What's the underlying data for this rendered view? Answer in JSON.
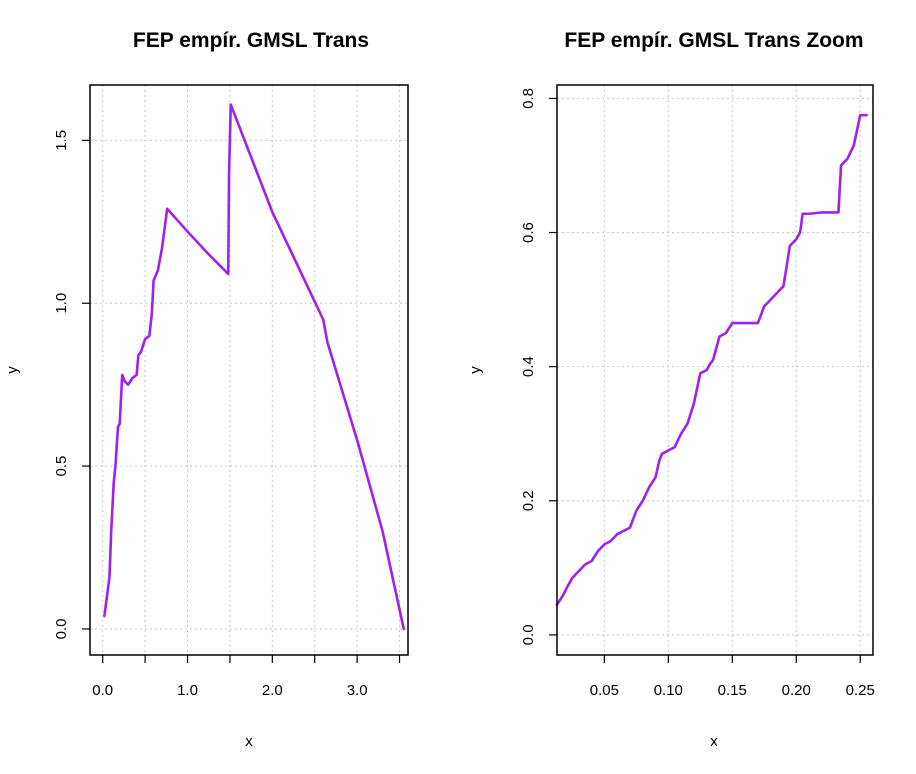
{
  "colors": {
    "series": "#A020F0",
    "grid": "#c8c8c8",
    "frame": "#000000"
  },
  "chart_data": [
    {
      "type": "line",
      "title": "FEP empír. GMSL Trans",
      "xlabel": "x",
      "ylabel": "y",
      "xlim": [
        -0.15,
        3.6
      ],
      "ylim": [
        -0.08,
        1.67
      ],
      "xticks": [
        0.0,
        0.5,
        1.0,
        1.5,
        2.0,
        2.5,
        3.0,
        3.5
      ],
      "xtick_labels": [
        "0.0",
        "",
        "1.0",
        "",
        "2.0",
        "",
        "3.0",
        ""
      ],
      "yticks": [
        0.0,
        0.5,
        1.0,
        1.5
      ],
      "ytick_labels": [
        "0.0",
        "0.5",
        "1.0",
        "1.5"
      ],
      "grid": true,
      "series": [
        {
          "x": [
            0.02,
            0.05,
            0.08,
            0.1,
            0.13,
            0.15,
            0.18,
            0.2,
            0.23,
            0.26,
            0.3,
            0.35,
            0.4,
            0.42,
            0.45,
            0.5,
            0.55,
            0.58,
            0.6,
            0.65,
            0.7,
            0.76,
            1.0,
            1.25,
            1.48,
            1.49,
            1.51,
            2.0,
            2.6,
            2.65,
            3.0,
            3.3,
            3.55
          ],
          "values": [
            0.04,
            0.1,
            0.16,
            0.3,
            0.45,
            0.5,
            0.62,
            0.63,
            0.78,
            0.76,
            0.75,
            0.77,
            0.78,
            0.84,
            0.85,
            0.89,
            0.9,
            0.97,
            1.07,
            1.1,
            1.17,
            1.29,
            1.22,
            1.15,
            1.09,
            1.4,
            1.61,
            1.28,
            0.95,
            0.88,
            0.58,
            0.3,
            0.0
          ]
        }
      ]
    },
    {
      "type": "line",
      "title": "FEP empír. GMSL Trans Zoom",
      "xlabel": "x",
      "ylabel": "y",
      "xlim": [
        0.013,
        0.26
      ],
      "ylim": [
        -0.03,
        0.82
      ],
      "xticks": [
        0.05,
        0.1,
        0.15,
        0.2,
        0.25
      ],
      "xtick_labels": [
        "0.05",
        "0.10",
        "0.15",
        "0.20",
        "0.25"
      ],
      "yticks": [
        0.0,
        0.2,
        0.4,
        0.6,
        0.8
      ],
      "ytick_labels": [
        "0.0",
        "0.2",
        "0.4",
        "0.6",
        "0.8"
      ],
      "grid": true,
      "series": [
        {
          "x": [
            0.013,
            0.018,
            0.022,
            0.025,
            0.03,
            0.035,
            0.04,
            0.045,
            0.05,
            0.055,
            0.06,
            0.065,
            0.07,
            0.075,
            0.08,
            0.085,
            0.09,
            0.093,
            0.095,
            0.1,
            0.105,
            0.11,
            0.115,
            0.12,
            0.125,
            0.13,
            0.133,
            0.135,
            0.14,
            0.145,
            0.15,
            0.16,
            0.165,
            0.17,
            0.175,
            0.18,
            0.185,
            0.19,
            0.195,
            0.2,
            0.203,
            0.205,
            0.21,
            0.22,
            0.23,
            0.233,
            0.235,
            0.24,
            0.245,
            0.25,
            0.255
          ],
          "values": [
            0.045,
            0.06,
            0.075,
            0.085,
            0.095,
            0.105,
            0.11,
            0.125,
            0.135,
            0.14,
            0.15,
            0.155,
            0.16,
            0.185,
            0.2,
            0.22,
            0.235,
            0.26,
            0.27,
            0.275,
            0.28,
            0.3,
            0.315,
            0.345,
            0.39,
            0.395,
            0.405,
            0.41,
            0.445,
            0.45,
            0.465,
            0.465,
            0.465,
            0.465,
            0.49,
            0.5,
            0.51,
            0.52,
            0.58,
            0.59,
            0.6,
            0.628,
            0.628,
            0.63,
            0.63,
            0.63,
            0.7,
            0.71,
            0.73,
            0.775,
            0.775
          ]
        }
      ]
    }
  ]
}
